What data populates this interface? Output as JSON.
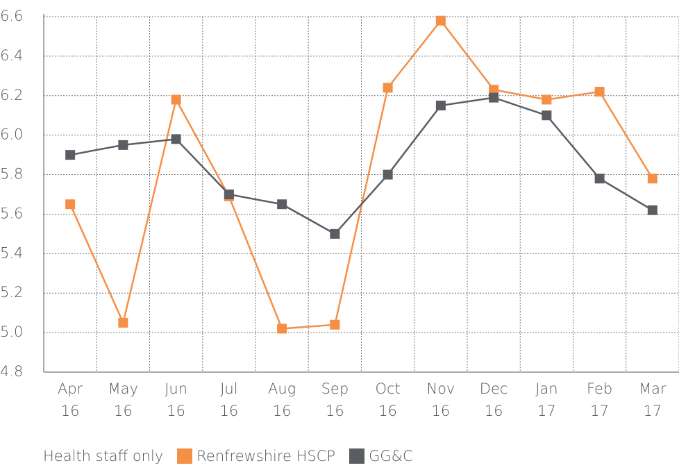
{
  "chart_data": {
    "type": "line",
    "legend_title": "Health staff only",
    "categories": [
      "Apr 16",
      "May 16",
      "Jun 16",
      "Jul 16",
      "Aug 16",
      "Sep 16",
      "Oct 16",
      "Nov 16",
      "Dec 16",
      "Jan 17",
      "Feb 17",
      "Mar 17"
    ],
    "series": [
      {
        "name": "Renfrewshire HSCP",
        "color": "#f58f45",
        "values": [
          5.65,
          5.05,
          6.18,
          5.69,
          5.02,
          5.04,
          6.24,
          6.58,
          6.23,
          6.18,
          6.22,
          5.78
        ]
      },
      {
        "name": "GG&C",
        "color": "#5a5e62",
        "values": [
          5.9,
          5.95,
          5.98,
          5.7,
          5.65,
          5.5,
          5.8,
          6.15,
          6.19,
          6.1,
          5.78,
          5.62
        ]
      }
    ],
    "ylim": [
      4.8,
      6.6
    ],
    "yticks": [
      4.8,
      {
        "value": 5,
        "label": "5.0"
      },
      5.2,
      5.4,
      5.6,
      5.8,
      {
        "value": 6,
        "label": "6.0"
      },
      6.2,
      6.4,
      6.6
    ],
    "grid": true
  }
}
